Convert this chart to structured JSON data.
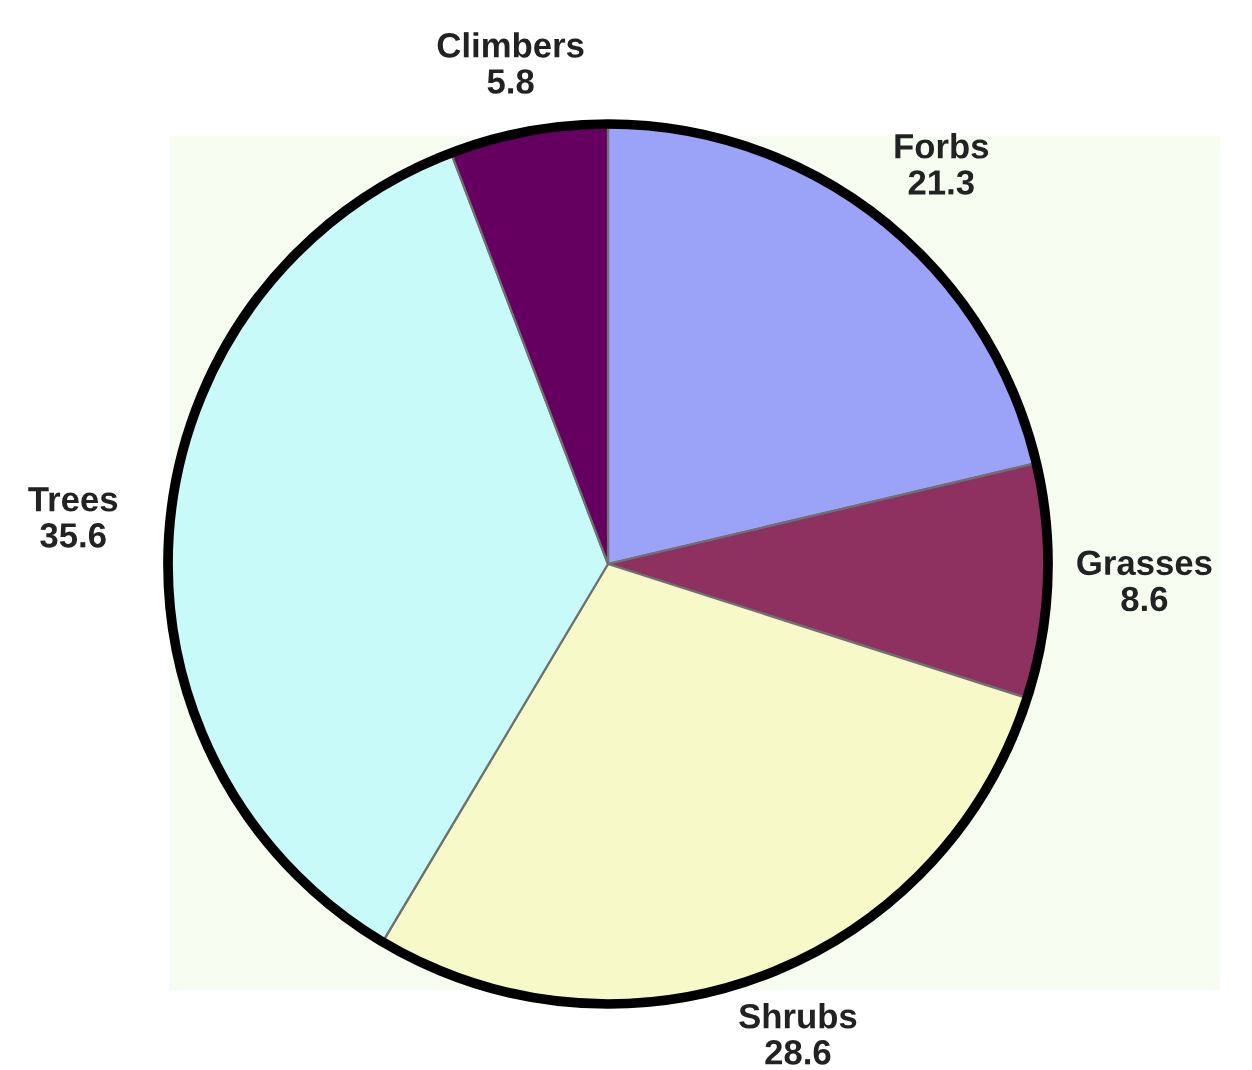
{
  "chart_data": {
    "type": "pie",
    "categories": [
      "Forbs",
      "Grasses",
      "Shrubs",
      "Trees",
      "Climbers"
    ],
    "values": [
      21.3,
      8.6,
      28.6,
      35.6,
      5.8
    ],
    "colors": [
      "#9aa3f7",
      "#8e3060",
      "#f7fac8",
      "#c8fafa",
      "#660060"
    ],
    "data_labels": true
  }
}
